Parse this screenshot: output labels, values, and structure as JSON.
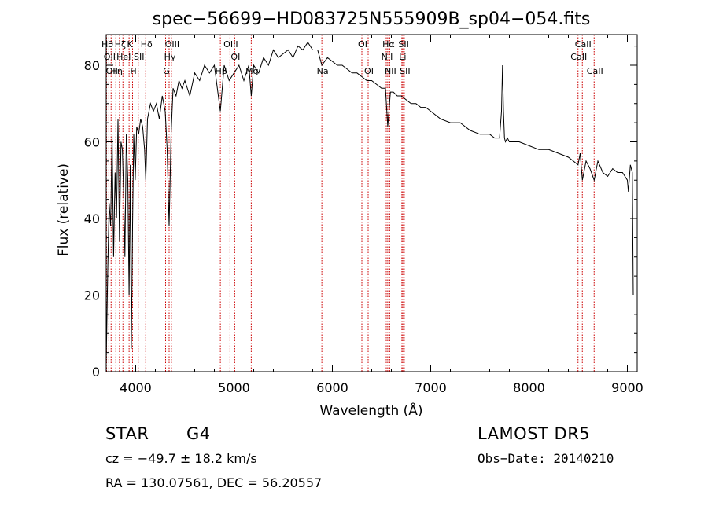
{
  "chart_data": {
    "type": "line",
    "title": "spec−56699−HD083725N555909B_sp04−054.fits",
    "xlabel": "Wavelength (Å)",
    "ylabel": "Flux (relative)",
    "xlim": [
      3700,
      9100
    ],
    "ylim": [
      0,
      88
    ],
    "x_ticks": [
      4000,
      5000,
      6000,
      7000,
      8000,
      9000
    ],
    "y_ticks": [
      0,
      20,
      40,
      60,
      80
    ],
    "x_tick_labels": [
      "4000",
      "5000",
      "6000",
      "7000",
      "8000",
      "9000"
    ],
    "y_tick_labels": [
      "0",
      "20",
      "40",
      "60",
      "80"
    ],
    "grid": false,
    "line_color": "#000000",
    "marker_color": "#cc0000",
    "series": [
      {
        "x": [
          3700,
          3715,
          3730,
          3745,
          3760,
          3775,
          3790,
          3805,
          3820,
          3835,
          3850,
          3865,
          3880,
          3890,
          3905,
          3920,
          3933,
          3945,
          3955,
          3968,
          3980,
          3995,
          4010,
          4030,
          4050,
          4070,
          4090,
          4102,
          4120,
          4150,
          4180,
          4210,
          4240,
          4270,
          4300,
          4320,
          4340,
          4360,
          4380,
          4410,
          4440,
          4470,
          4500,
          4550,
          4600,
          4650,
          4700,
          4750,
          4800,
          4861,
          4900,
          4950,
          5000,
          5050,
          5100,
          5150,
          5175,
          5200,
          5250,
          5300,
          5350,
          5400,
          5450,
          5500,
          5550,
          5600,
          5650,
          5700,
          5750,
          5800,
          5850,
          5893,
          5950,
          6000,
          6050,
          6100,
          6150,
          6200,
          6250,
          6300,
          6350,
          6400,
          6450,
          6500,
          6540,
          6563,
          6590,
          6620,
          6660,
          6700,
          6750,
          6800,
          6850,
          6900,
          6950,
          7000,
          7100,
          7200,
          7300,
          7400,
          7500,
          7600,
          7650,
          7700,
          7720,
          7730,
          7740,
          7750,
          7760,
          7780,
          7800,
          7900,
          8000,
          8100,
          8200,
          8300,
          8400,
          8450,
          8498,
          8520,
          8542,
          8580,
          8620,
          8662,
          8700,
          8750,
          8800,
          8850,
          8900,
          8950,
          9000,
          9010,
          9030,
          9050,
          9060
        ],
        "y": [
          2,
          26,
          44,
          38,
          62,
          30,
          52,
          40,
          66,
          34,
          60,
          58,
          44,
          30,
          62,
          50,
          20,
          54,
          6,
          38,
          62,
          50,
          64,
          62,
          66,
          64,
          58,
          50,
          66,
          70,
          68,
          70,
          66,
          72,
          68,
          58,
          38,
          62,
          74,
          72,
          76,
          74,
          76,
          72,
          78,
          76,
          80,
          78,
          80,
          68,
          80,
          76,
          78,
          80,
          76,
          80,
          72,
          80,
          78,
          82,
          80,
          84,
          82,
          83,
          84,
          82,
          85,
          84,
          86,
          84,
          84,
          80,
          82,
          81,
          80,
          80,
          79,
          78,
          78,
          77,
          76,
          76,
          75,
          74,
          74,
          64,
          73,
          73,
          72,
          72,
          71,
          70,
          70,
          69,
          69,
          68,
          66,
          65,
          65,
          63,
          62,
          62,
          61,
          61,
          68,
          80,
          68,
          61,
          60,
          61,
          60,
          60,
          59,
          58,
          58,
          57,
          56,
          55,
          54,
          57,
          50,
          55,
          53,
          50,
          55,
          52,
          51,
          53,
          52,
          52,
          50,
          47,
          54,
          52,
          20
        ]
      }
    ],
    "line_markers": [
      {
        "x": 3704,
        "label": "Hθ",
        "row": 0
      },
      {
        "x": 3727,
        "label": "OII",
        "row": 1
      },
      {
        "x": 3750,
        "label": "OII",
        "row": 2
      },
      {
        "x": 3798,
        "label": "Hη",
        "row": 2
      },
      {
        "x": 3835,
        "label": "Hζ",
        "row": 0
      },
      {
        "x": 3870,
        "label": "HeI",
        "row": 1
      },
      {
        "x": 3933,
        "label": "K",
        "row": 0
      },
      {
        "x": 3968,
        "label": "H",
        "row": 2
      },
      {
        "x": 4026,
        "label": "SII",
        "row": 1
      },
      {
        "x": 4102,
        "label": "Hδ",
        "row": 0
      },
      {
        "x": 4304,
        "label": "G",
        "row": 2
      },
      {
        "x": 4340,
        "label": "Hγ",
        "row": 1
      },
      {
        "x": 4363,
        "label": "OIII",
        "row": 0
      },
      {
        "x": 4861,
        "label": "Hβ",
        "row": 2
      },
      {
        "x": 4959,
        "label": "OIII",
        "row": 0
      },
      {
        "x": 5007,
        "label": "OI",
        "row": 1
      },
      {
        "x": 5175,
        "label": "Mg",
        "row": 2
      },
      {
        "x": 5893,
        "label": "Na",
        "row": 2
      },
      {
        "x": 6300,
        "label": "OI",
        "row": 0
      },
      {
        "x": 6364,
        "label": "OI",
        "row": 2
      },
      {
        "x": 6548,
        "label": "NII",
        "row": 1
      },
      {
        "x": 6563,
        "label": "Hα",
        "row": 0
      },
      {
        "x": 6583,
        "label": "NII",
        "row": 2
      },
      {
        "x": 6707,
        "label": "Li",
        "row": 1
      },
      {
        "x": 6717,
        "label": "SII",
        "row": 0
      },
      {
        "x": 6731,
        "label": "SII",
        "row": 2
      },
      {
        "x": 8498,
        "label": "CaII",
        "row": 1
      },
      {
        "x": 8542,
        "label": "CaII",
        "row": 0
      },
      {
        "x": 8662,
        "label": "CaII",
        "row": 2
      }
    ]
  },
  "info": {
    "object_class": "STAR",
    "subclass": "G4",
    "velocity": "cz = −49.7 ± 18.2 km/s",
    "coordinates": "RA = 130.07561, DEC =  56.20557",
    "survey": "LAMOST DR5",
    "obs_date": "Obs−Date: 20140210"
  }
}
